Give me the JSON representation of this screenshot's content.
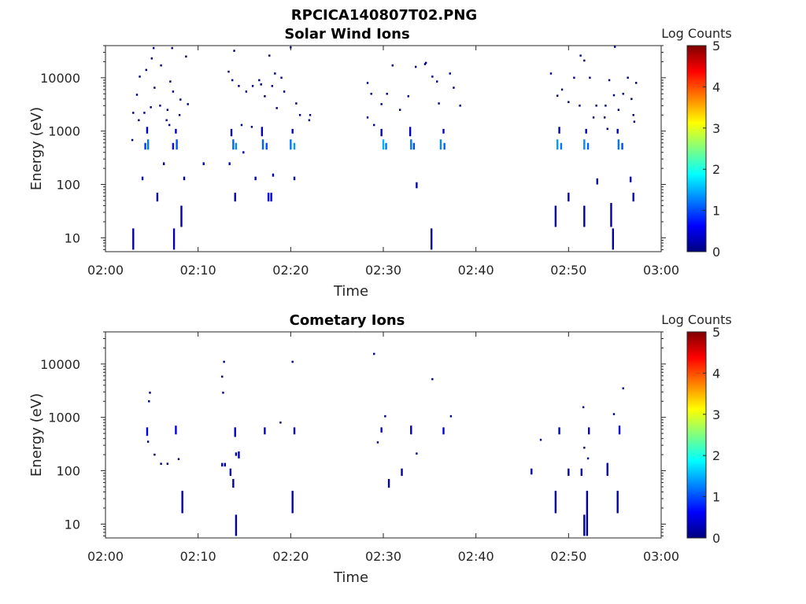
{
  "figure_title": "RPCICA140807T02.PNG",
  "colorbar_colors": [
    "#00007f",
    "#0000ff",
    "#007fff",
    "#00ffff",
    "#7fff7f",
    "#ffff00",
    "#ff7f00",
    "#ff0000",
    "#7f0000"
  ],
  "chart_data": [
    {
      "type": "heatmap",
      "title": "Solar Wind Ions",
      "xlabel": "Time",
      "ylabel": "Energy (eV)",
      "x_ticks": [
        "02:00",
        "02:10",
        "02:20",
        "02:30",
        "02:40",
        "02:50",
        "03:00"
      ],
      "y_ticks": [
        "10",
        "100",
        "1000",
        "10000"
      ],
      "y_scale": "log",
      "ylim": [
        5.5,
        40000
      ],
      "xlim_minutes": [
        0,
        60
      ],
      "colorbar": {
        "label": "Log Counts",
        "range": [
          0,
          5
        ],
        "ticks": [
          "0",
          "1",
          "2",
          "3",
          "4",
          "5"
        ]
      },
      "cells": [
        [
          3.0,
          6,
          15,
          0.2
        ],
        [
          7.4,
          6,
          15,
          0.2
        ],
        [
          35.2,
          6,
          15,
          0.2
        ],
        [
          54.8,
          6,
          15,
          0.2
        ],
        [
          8.2,
          16,
          40,
          0.2
        ],
        [
          48.6,
          16,
          40,
          0.2
        ],
        [
          51.7,
          16,
          40,
          0.2
        ],
        [
          54.6,
          16,
          45,
          0.2
        ],
        [
          5.6,
          48,
          70,
          0.3
        ],
        [
          14.0,
          48,
          70,
          0.3
        ],
        [
          17.6,
          48,
          70,
          0.5
        ],
        [
          17.9,
          48,
          70,
          0.5
        ],
        [
          50.0,
          48,
          70,
          0.3
        ],
        [
          57.0,
          48,
          70,
          0.3
        ],
        [
          4.0,
          120,
          140,
          0.2
        ],
        [
          8.5,
          120,
          140,
          0.2
        ],
        [
          16.2,
          120,
          140,
          0.2
        ],
        [
          20.4,
          120,
          140,
          0.2
        ],
        [
          33.6,
          85,
          110,
          0.2
        ],
        [
          53.1,
          100,
          130,
          0.2
        ],
        [
          56.7,
          110,
          140,
          0.2
        ],
        [
          6.3,
          230,
          260,
          0.2
        ],
        [
          10.6,
          230,
          260,
          0.2
        ],
        [
          13.4,
          230,
          260,
          0.2
        ],
        [
          18.1,
          140,
          160,
          0.2
        ],
        [
          14.9,
          380,
          420,
          0.2
        ],
        [
          4.3,
          450,
          600,
          0.9
        ],
        [
          4.6,
          450,
          700,
          1.2
        ],
        [
          7.3,
          450,
          600,
          0.7
        ],
        [
          7.7,
          450,
          700,
          1.0
        ],
        [
          13.8,
          450,
          700,
          1.1
        ],
        [
          14.1,
          450,
          600,
          1.3
        ],
        [
          17.0,
          450,
          700,
          1.1
        ],
        [
          17.4,
          450,
          600,
          1.0
        ],
        [
          20.0,
          450,
          700,
          1.2
        ],
        [
          20.4,
          450,
          600,
          1.4
        ],
        [
          30.0,
          450,
          700,
          1.5
        ],
        [
          30.3,
          450,
          600,
          1.2
        ],
        [
          33.0,
          450,
          700,
          1.2
        ],
        [
          33.3,
          450,
          600,
          1.0
        ],
        [
          36.2,
          450,
          700,
          1.3
        ],
        [
          36.6,
          450,
          600,
          1.1
        ],
        [
          48.8,
          450,
          700,
          1.4
        ],
        [
          49.2,
          450,
          600,
          1.2
        ],
        [
          51.7,
          450,
          700,
          1.3
        ],
        [
          52.1,
          450,
          600,
          1.1
        ],
        [
          55.4,
          450,
          700,
          1.2
        ],
        [
          55.8,
          450,
          600,
          1.0
        ],
        [
          4.5,
          900,
          1200,
          0.3
        ],
        [
          7.6,
          900,
          1100,
          0.3
        ],
        [
          13.6,
          800,
          1100,
          0.3
        ],
        [
          16.9,
          800,
          1200,
          0.3
        ],
        [
          20.2,
          900,
          1100,
          0.3
        ],
        [
          29.8,
          800,
          1100,
          0.3
        ],
        [
          32.9,
          800,
          1200,
          0.3
        ],
        [
          36.5,
          900,
          1100,
          0.3
        ],
        [
          49.0,
          900,
          1200,
          0.3
        ],
        [
          51.9,
          900,
          1100,
          0.3
        ],
        [
          55.3,
          900,
          1100,
          0.3
        ]
      ],
      "dots": [
        [
          3.0,
          2200
        ],
        [
          3.4,
          4800
        ],
        [
          3.7,
          10500
        ],
        [
          4.4,
          14000
        ],
        [
          5.0,
          23000
        ],
        [
          5.3,
          6500
        ],
        [
          4.9,
          2800
        ],
        [
          6.0,
          17000
        ],
        [
          6.6,
          1600
        ],
        [
          7.0,
          8500
        ],
        [
          7.3,
          5500
        ],
        [
          8.1,
          3900
        ],
        [
          8.7,
          25000
        ],
        [
          5.2,
          36000
        ],
        [
          7.2,
          36000
        ],
        [
          3.6,
          1600
        ],
        [
          4.2,
          2200
        ],
        [
          5.9,
          3000
        ],
        [
          8.0,
          2000
        ],
        [
          6.9,
          1300
        ],
        [
          2.9,
          680
        ],
        [
          6.7,
          2500
        ],
        [
          8.9,
          3200
        ],
        [
          13.3,
          13000
        ],
        [
          13.7,
          9000
        ],
        [
          14.4,
          7000
        ],
        [
          15.2,
          5500
        ],
        [
          15.9,
          7000
        ],
        [
          16.6,
          9000
        ],
        [
          17.2,
          4500
        ],
        [
          18.0,
          7000
        ],
        [
          18.5,
          2700
        ],
        [
          17.7,
          26000
        ],
        [
          19.3,
          5500
        ],
        [
          20.6,
          3300
        ],
        [
          21.0,
          2000
        ],
        [
          22.1,
          2000
        ],
        [
          22.0,
          1600
        ],
        [
          14.7,
          1300
        ],
        [
          15.8,
          1200
        ],
        [
          13.9,
          32000
        ],
        [
          20.0,
          37000
        ],
        [
          16.8,
          7500
        ],
        [
          18.3,
          12000
        ],
        [
          19.0,
          10000
        ],
        [
          28.3,
          8000
        ],
        [
          28.7,
          5000
        ],
        [
          29.8,
          3200
        ],
        [
          30.4,
          5000
        ],
        [
          31.8,
          2500
        ],
        [
          32.7,
          4500
        ],
        [
          33.5,
          16000
        ],
        [
          34.6,
          19000
        ],
        [
          35.3,
          10500
        ],
        [
          35.8,
          8500
        ],
        [
          36.0,
          3300
        ],
        [
          37.6,
          6500
        ],
        [
          37.2,
          12000
        ],
        [
          38.3,
          3000
        ],
        [
          31.0,
          17000
        ],
        [
          29.0,
          1300
        ],
        [
          28.3,
          1800
        ],
        [
          34.5,
          18000
        ],
        [
          48.1,
          12000
        ],
        [
          48.8,
          4600
        ],
        [
          49.3,
          6000
        ],
        [
          50.0,
          3500
        ],
        [
          50.6,
          10000
        ],
        [
          51.2,
          3000
        ],
        [
          51.7,
          21000
        ],
        [
          52.3,
          10000
        ],
        [
          53.0,
          3000
        ],
        [
          54.0,
          3000
        ],
        [
          54.9,
          4700
        ],
        [
          55.4,
          2500
        ],
        [
          55.9,
          5000
        ],
        [
          56.4,
          10000
        ],
        [
          56.8,
          4000
        ],
        [
          57.3,
          8000
        ],
        [
          57.0,
          2000
        ],
        [
          51.3,
          26000
        ],
        [
          52.7,
          1800
        ],
        [
          53.9,
          1800
        ],
        [
          54.4,
          9000
        ],
        [
          55.0,
          38000
        ],
        [
          54.2,
          1100
        ],
        [
          57.1,
          1500
        ]
      ]
    },
    {
      "type": "heatmap",
      "title": "Cometary Ions",
      "xlabel": "Time",
      "ylabel": "Energy (eV)",
      "x_ticks": [
        "02:00",
        "02:10",
        "02:20",
        "02:30",
        "02:40",
        "02:50",
        "03:00"
      ],
      "y_ticks": [
        "10",
        "100",
        "1000",
        "10000"
      ],
      "y_scale": "log",
      "ylim": [
        5.5,
        40000
      ],
      "xlim_minutes": [
        0,
        60
      ],
      "colorbar": {
        "label": "Log Counts",
        "range": [
          0,
          5
        ],
        "ticks": [
          "0",
          "1",
          "2",
          "3",
          "4",
          "5"
        ]
      },
      "cells": [
        [
          8.3,
          16,
          42,
          0.2
        ],
        [
          20.2,
          16,
          42,
          0.2
        ],
        [
          48.6,
          16,
          42,
          0.2
        ],
        [
          55.3,
          16,
          42,
          0.2
        ],
        [
          14.1,
          6,
          15,
          0.2
        ],
        [
          51.7,
          6,
          15,
          0.2
        ],
        [
          52.0,
          6,
          42,
          0.2
        ],
        [
          13.8,
          48,
          70,
          0.2
        ],
        [
          30.6,
          48,
          70,
          0.2
        ],
        [
          13.5,
          80,
          110,
          0.2
        ],
        [
          32.0,
          80,
          110,
          0.2
        ],
        [
          46.0,
          85,
          110,
          0.2
        ],
        [
          50.0,
          80,
          110,
          0.2
        ],
        [
          51.4,
          80,
          110,
          0.2
        ],
        [
          54.2,
          80,
          140,
          0.2
        ],
        [
          12.6,
          120,
          140,
          0.3
        ],
        [
          12.9,
          120,
          140,
          0.3
        ],
        [
          14.4,
          170,
          230,
          0.2
        ],
        [
          14.1,
          190,
          220,
          0.2
        ],
        [
          4.5,
          450,
          650,
          0.5
        ],
        [
          7.6,
          480,
          700,
          0.5
        ],
        [
          14.0,
          430,
          650,
          0.4
        ],
        [
          17.2,
          480,
          650,
          0.4
        ],
        [
          20.4,
          480,
          650,
          0.4
        ],
        [
          29.8,
          520,
          650,
          0.3
        ],
        [
          33.0,
          480,
          700,
          0.3
        ],
        [
          36.5,
          480,
          650,
          0.4
        ],
        [
          49.0,
          480,
          650,
          0.4
        ],
        [
          52.2,
          480,
          650,
          0.4
        ],
        [
          55.5,
          480,
          700,
          0.4
        ]
      ],
      "dots": [
        [
          4.8,
          2900
        ],
        [
          4.7,
          2000
        ],
        [
          4.6,
          350
        ],
        [
          5.3,
          200
        ],
        [
          6.0,
          135
        ],
        [
          6.7,
          135
        ],
        [
          7.9,
          165
        ],
        [
          12.6,
          5800
        ],
        [
          12.8,
          11000
        ],
        [
          12.7,
          2900
        ],
        [
          18.9,
          800
        ],
        [
          20.2,
          11000
        ],
        [
          29.0,
          15500
        ],
        [
          30.2,
          1050
        ],
        [
          29.4,
          340
        ],
        [
          33.6,
          210
        ],
        [
          35.3,
          5200
        ],
        [
          37.3,
          1050
        ],
        [
          47.0,
          380
        ],
        [
          51.7,
          270
        ],
        [
          51.6,
          1550
        ],
        [
          52.1,
          170
        ],
        [
          54.9,
          1150
        ],
        [
          55.9,
          3500
        ]
      ]
    }
  ]
}
